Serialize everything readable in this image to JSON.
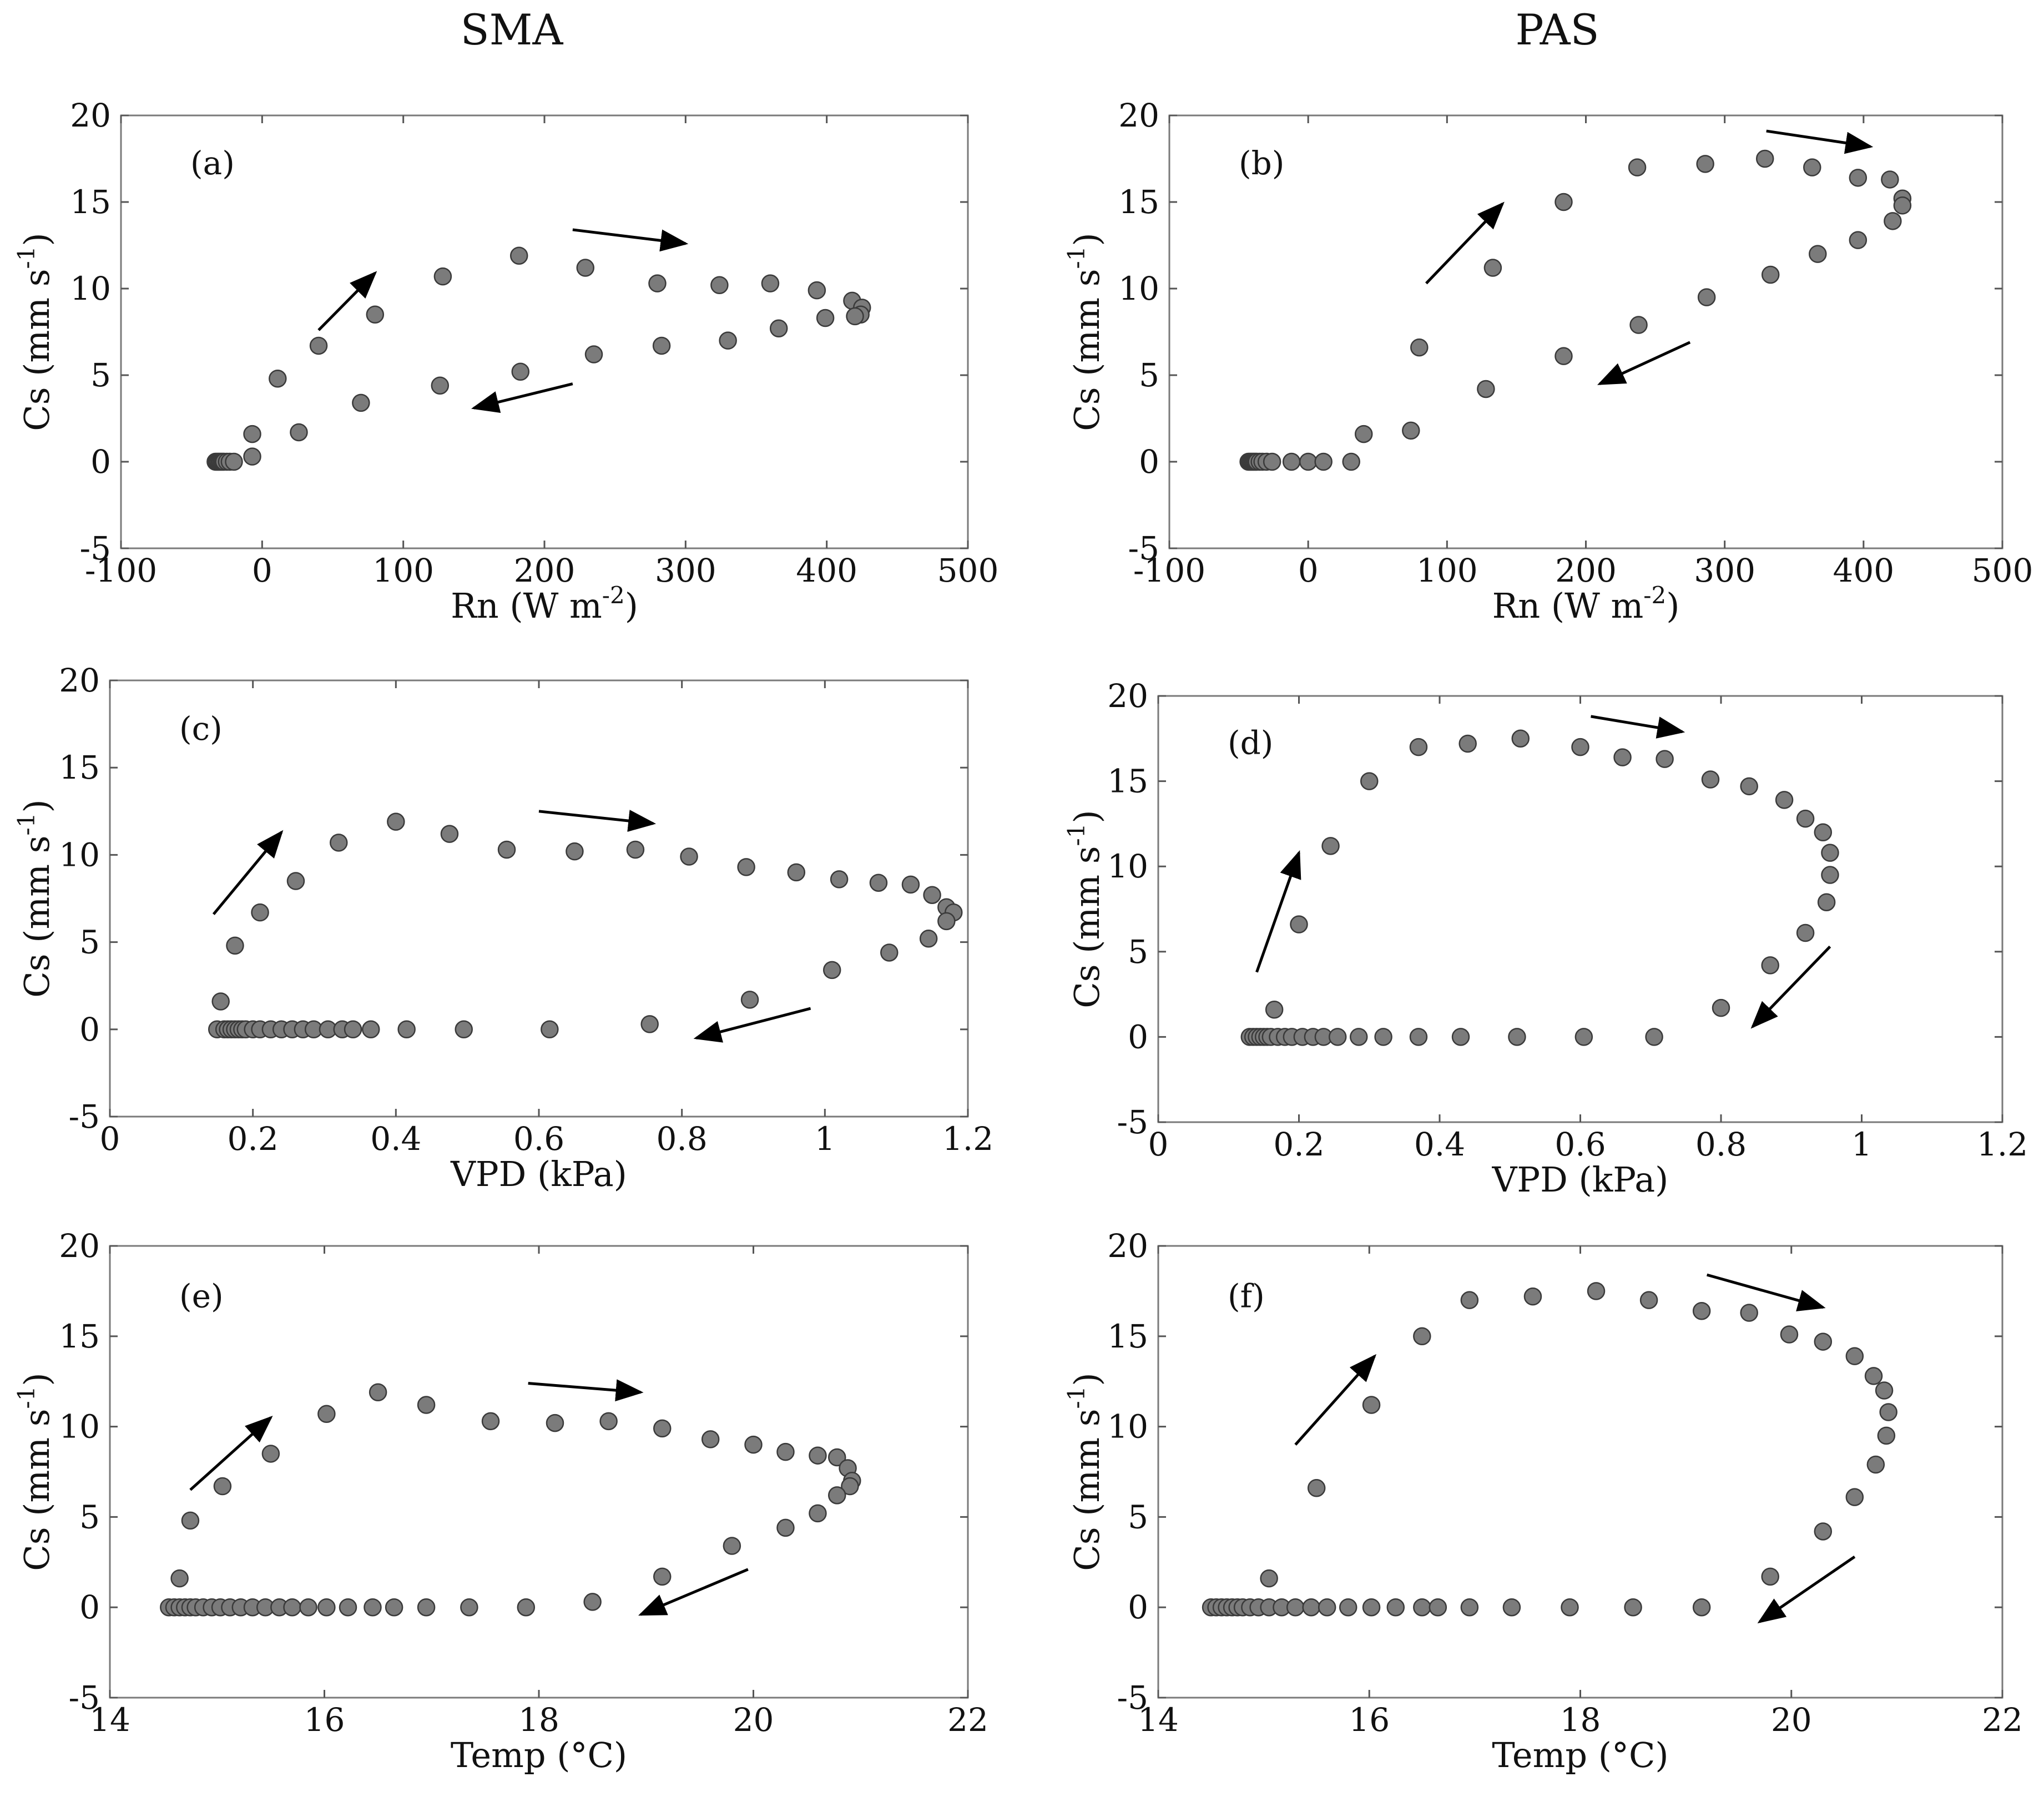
{
  "column_titles": [
    "SMA",
    "PAS"
  ],
  "chart_data": [
    {
      "type": "scatter",
      "label": "(a)",
      "column": "SMA",
      "xlabel": "Rn (W m",
      "xlabel_sup": "-2",
      "xlabel_end": ")",
      "ylabel": "Cs (mm s",
      "ylabel_sup": "-1",
      "ylabel_end": ")",
      "xlim": [
        -100,
        500
      ],
      "ylim": [
        -5,
        20
      ],
      "xticks": [
        -100,
        0,
        100,
        200,
        300,
        400,
        500
      ],
      "yticks": [
        -5,
        0,
        5,
        10,
        15,
        20
      ],
      "points": [
        [
          -33,
          0
        ],
        [
          -32,
          0
        ],
        [
          -31,
          0
        ],
        [
          -30,
          0
        ],
        [
          -29,
          0
        ],
        [
          -28,
          0
        ],
        [
          -27,
          0
        ],
        [
          -25,
          0
        ],
        [
          -23,
          0
        ],
        [
          -20,
          0
        ],
        [
          -7,
          0.3
        ],
        [
          -7,
          1.6
        ],
        [
          11,
          4.8
        ],
        [
          40,
          6.7
        ],
        [
          80,
          8.5
        ],
        [
          128,
          10.7
        ],
        [
          182,
          11.9
        ],
        [
          229,
          11.2
        ],
        [
          280,
          10.3
        ],
        [
          324,
          10.2
        ],
        [
          360,
          10.3
        ],
        [
          393,
          9.9
        ],
        [
          418,
          9.3
        ],
        [
          425,
          8.9
        ],
        [
          424,
          8.5
        ],
        [
          420,
          8.4
        ],
        [
          399,
          8.3
        ],
        [
          366,
          7.7
        ],
        [
          330,
          7.0
        ],
        [
          283,
          6.7
        ],
        [
          235,
          6.2
        ],
        [
          183,
          5.2
        ],
        [
          126,
          4.4
        ],
        [
          70,
          3.4
        ],
        [
          26,
          1.7
        ]
      ],
      "arrows": [
        [
          40,
          7.6,
          80,
          10.9
        ],
        [
          220,
          13.4,
          300,
          12.6
        ],
        [
          220,
          4.5,
          150,
          3.1
        ]
      ]
    },
    {
      "type": "scatter",
      "label": "(b)",
      "column": "PAS",
      "xlabel": "Rn (W m",
      "xlabel_sup": "-2",
      "xlabel_end": ")",
      "ylabel": "Cs (mm s",
      "ylabel_sup": "-1",
      "ylabel_end": ")",
      "xlim": [
        -100,
        500
      ],
      "ylim": [
        -5,
        20
      ],
      "xticks": [
        -100,
        0,
        100,
        200,
        300,
        400,
        500
      ],
      "yticks": [
        -5,
        0,
        5,
        10,
        15,
        20
      ],
      "points": [
        [
          -43,
          0
        ],
        [
          -42,
          0
        ],
        [
          -41,
          0
        ],
        [
          -40,
          0
        ],
        [
          -39,
          0
        ],
        [
          -38,
          0
        ],
        [
          -37,
          0
        ],
        [
          -35,
          0
        ],
        [
          -33,
          0
        ],
        [
          -30,
          0
        ],
        [
          -26,
          0
        ],
        [
          -12,
          0
        ],
        [
          0,
          0
        ],
        [
          11,
          0
        ],
        [
          31,
          0
        ],
        [
          40,
          1.6
        ],
        [
          74,
          1.8
        ],
        [
          80,
          6.6
        ],
        [
          128,
          4.2
        ],
        [
          133,
          11.2
        ],
        [
          184,
          15.0
        ],
        [
          184,
          6.1
        ],
        [
          237,
          17.0
        ],
        [
          238,
          7.9
        ],
        [
          286,
          17.2
        ],
        [
          287,
          9.5
        ],
        [
          329,
          17.5
        ],
        [
          333,
          10.8
        ],
        [
          363,
          17.0
        ],
        [
          367,
          12.0
        ],
        [
          396,
          16.4
        ],
        [
          396,
          12.8
        ],
        [
          419,
          16.3
        ],
        [
          421,
          13.9
        ],
        [
          428,
          15.2
        ],
        [
          428,
          14.8
        ]
      ],
      "arrows": [
        [
          85,
          10.3,
          140,
          14.9
        ],
        [
          330,
          19.1,
          405,
          18.2
        ],
        [
          275,
          6.9,
          210,
          4.5
        ]
      ]
    },
    {
      "type": "scatter",
      "label": "(c)",
      "column": "SMA",
      "xlabel": "VPD (kPa)",
      "xlabel_sup": "",
      "xlabel_end": "",
      "ylabel": "Cs (mm s",
      "ylabel_sup": "-1",
      "ylabel_end": ")",
      "xlim": [
        0,
        1.2
      ],
      "ylim": [
        -5,
        20
      ],
      "xticks": [
        0,
        0.2,
        0.4,
        0.6,
        0.8,
        1,
        1.2
      ],
      "yticks": [
        -5,
        0,
        5,
        10,
        15,
        20
      ],
      "points": [
        [
          0.15,
          0
        ],
        [
          0.16,
          0
        ],
        [
          0.165,
          0
        ],
        [
          0.17,
          0
        ],
        [
          0.175,
          0
        ],
        [
          0.18,
          0
        ],
        [
          0.185,
          0
        ],
        [
          0.19,
          0
        ],
        [
          0.2,
          0
        ],
        [
          0.21,
          0
        ],
        [
          0.225,
          0
        ],
        [
          0.24,
          0
        ],
        [
          0.255,
          0
        ],
        [
          0.27,
          0
        ],
        [
          0.285,
          0
        ],
        [
          0.305,
          0
        ],
        [
          0.325,
          0
        ],
        [
          0.34,
          0
        ],
        [
          0.365,
          0
        ],
        [
          0.415,
          0
        ],
        [
          0.495,
          0
        ],
        [
          0.615,
          0
        ],
        [
          0.755,
          0.3
        ],
        [
          0.155,
          1.6
        ],
        [
          0.175,
          4.8
        ],
        [
          0.21,
          6.7
        ],
        [
          0.26,
          8.5
        ],
        [
          0.32,
          10.7
        ],
        [
          0.4,
          11.9
        ],
        [
          0.475,
          11.2
        ],
        [
          0.555,
          10.3
        ],
        [
          0.65,
          10.2
        ],
        [
          0.735,
          10.3
        ],
        [
          0.81,
          9.9
        ],
        [
          0.89,
          9.3
        ],
        [
          0.96,
          9.0
        ],
        [
          1.02,
          8.6
        ],
        [
          1.075,
          8.4
        ],
        [
          1.12,
          8.3
        ],
        [
          1.15,
          7.7
        ],
        [
          1.17,
          7.0
        ],
        [
          1.18,
          6.7
        ],
        [
          1.17,
          6.2
        ],
        [
          1.145,
          5.2
        ],
        [
          1.09,
          4.4
        ],
        [
          1.01,
          3.4
        ],
        [
          0.895,
          1.7
        ]
      ],
      "arrows": [
        [
          0.145,
          6.6,
          0.24,
          11.3
        ],
        [
          0.6,
          12.5,
          0.76,
          11.8
        ],
        [
          0.98,
          1.2,
          0.82,
          -0.5
        ]
      ]
    },
    {
      "type": "scatter",
      "label": "(d)",
      "column": "PAS",
      "xlabel": "VPD (kPa)",
      "xlabel_sup": "",
      "xlabel_end": "",
      "ylabel": "Cs (mm s",
      "ylabel_sup": "-1",
      "ylabel_end": ")",
      "xlim": [
        0,
        1.2
      ],
      "ylim": [
        -5,
        20
      ],
      "xticks": [
        0,
        0.2,
        0.4,
        0.6,
        0.8,
        1,
        1.2
      ],
      "yticks": [
        -5,
        0,
        5,
        10,
        15,
        20
      ],
      "points": [
        [
          0.13,
          0
        ],
        [
          0.135,
          0
        ],
        [
          0.14,
          0
        ],
        [
          0.145,
          0
        ],
        [
          0.15,
          0
        ],
        [
          0.155,
          0
        ],
        [
          0.16,
          0
        ],
        [
          0.17,
          0
        ],
        [
          0.18,
          0
        ],
        [
          0.19,
          0
        ],
        [
          0.205,
          0
        ],
        [
          0.22,
          0
        ],
        [
          0.235,
          0
        ],
        [
          0.255,
          0
        ],
        [
          0.285,
          0
        ],
        [
          0.32,
          0
        ],
        [
          0.37,
          0
        ],
        [
          0.43,
          0
        ],
        [
          0.51,
          0
        ],
        [
          0.605,
          0
        ],
        [
          0.705,
          0
        ],
        [
          0.165,
          1.6
        ],
        [
          0.2,
          6.6
        ],
        [
          0.245,
          11.2
        ],
        [
          0.3,
          15.0
        ],
        [
          0.37,
          17.0
        ],
        [
          0.44,
          17.2
        ],
        [
          0.515,
          17.5
        ],
        [
          0.6,
          17.0
        ],
        [
          0.66,
          16.4
        ],
        [
          0.72,
          16.3
        ],
        [
          0.785,
          15.1
        ],
        [
          0.84,
          14.7
        ],
        [
          0.89,
          13.9
        ],
        [
          0.92,
          12.8
        ],
        [
          0.945,
          12.0
        ],
        [
          0.955,
          10.8
        ],
        [
          0.955,
          9.5
        ],
        [
          0.95,
          7.9
        ],
        [
          0.92,
          6.1
        ],
        [
          0.87,
          4.2
        ],
        [
          0.8,
          1.7
        ]
      ],
      "arrows": [
        [
          0.14,
          3.8,
          0.2,
          10.8
        ],
        [
          0.615,
          18.8,
          0.745,
          17.9
        ],
        [
          0.955,
          5.3,
          0.845,
          0.6
        ]
      ]
    },
    {
      "type": "scatter",
      "label": "(e)",
      "column": "SMA",
      "xlabel": "Temp (°C)",
      "xlabel_sup": "",
      "xlabel_end": "",
      "ylabel": "Cs (mm s",
      "ylabel_sup": "-1",
      "ylabel_end": ")",
      "xlim": [
        14,
        22
      ],
      "ylim": [
        -5,
        20
      ],
      "xticks": [
        14,
        16,
        18,
        20,
        22
      ],
      "yticks": [
        -5,
        0,
        5,
        10,
        15,
        20
      ],
      "points": [
        [
          14.55,
          0
        ],
        [
          14.6,
          0
        ],
        [
          14.65,
          0
        ],
        [
          14.7,
          0
        ],
        [
          14.75,
          0
        ],
        [
          14.8,
          0
        ],
        [
          14.87,
          0
        ],
        [
          14.95,
          0
        ],
        [
          15.03,
          0
        ],
        [
          15.12,
          0
        ],
        [
          15.22,
          0
        ],
        [
          15.33,
          0
        ],
        [
          15.45,
          0
        ],
        [
          15.58,
          0
        ],
        [
          15.7,
          0
        ],
        [
          15.85,
          0
        ],
        [
          16.02,
          0
        ],
        [
          16.22,
          0
        ],
        [
          16.45,
          0
        ],
        [
          16.65,
          0
        ],
        [
          16.95,
          0
        ],
        [
          17.35,
          0
        ],
        [
          17.88,
          0
        ],
        [
          18.5,
          0.3
        ],
        [
          14.65,
          1.6
        ],
        [
          14.75,
          4.8
        ],
        [
          15.05,
          6.7
        ],
        [
          15.5,
          8.5
        ],
        [
          16.02,
          10.7
        ],
        [
          16.5,
          11.9
        ],
        [
          16.95,
          11.2
        ],
        [
          17.55,
          10.3
        ],
        [
          18.15,
          10.2
        ],
        [
          18.65,
          10.3
        ],
        [
          19.15,
          9.9
        ],
        [
          19.6,
          9.3
        ],
        [
          20.0,
          9.0
        ],
        [
          20.3,
          8.6
        ],
        [
          20.6,
          8.4
        ],
        [
          20.78,
          8.3
        ],
        [
          20.88,
          7.7
        ],
        [
          20.92,
          7.0
        ],
        [
          20.9,
          6.7
        ],
        [
          20.78,
          6.2
        ],
        [
          20.6,
          5.2
        ],
        [
          20.3,
          4.4
        ],
        [
          19.8,
          3.4
        ],
        [
          19.15,
          1.7
        ]
      ],
      "arrows": [
        [
          14.75,
          6.5,
          15.5,
          10.5
        ],
        [
          17.9,
          12.4,
          18.95,
          11.9
        ],
        [
          19.95,
          2.1,
          18.95,
          -0.4
        ]
      ]
    },
    {
      "type": "scatter",
      "label": "(f)",
      "column": "PAS",
      "xlabel": "Temp (°C)",
      "xlabel_sup": "",
      "xlabel_end": "",
      "ylabel": "Cs (mm s",
      "ylabel_sup": "-1",
      "ylabel_end": ")",
      "xlim": [
        14,
        22
      ],
      "ylim": [
        -5,
        20
      ],
      "xticks": [
        14,
        16,
        18,
        20,
        22
      ],
      "yticks": [
        -5,
        0,
        5,
        10,
        15,
        20
      ],
      "points": [
        [
          14.5,
          0
        ],
        [
          14.55,
          0
        ],
        [
          14.6,
          0
        ],
        [
          14.65,
          0
        ],
        [
          14.7,
          0
        ],
        [
          14.75,
          0
        ],
        [
          14.8,
          0
        ],
        [
          14.87,
          0
        ],
        [
          14.95,
          0
        ],
        [
          15.05,
          0
        ],
        [
          15.17,
          0
        ],
        [
          15.3,
          0
        ],
        [
          15.45,
          0
        ],
        [
          15.6,
          0
        ],
        [
          15.8,
          0
        ],
        [
          16.02,
          0
        ],
        [
          16.25,
          0
        ],
        [
          16.5,
          0
        ],
        [
          16.65,
          0
        ],
        [
          16.95,
          0
        ],
        [
          17.35,
          0
        ],
        [
          17.9,
          0
        ],
        [
          18.5,
          0
        ],
        [
          19.15,
          0
        ],
        [
          15.05,
          1.6
        ],
        [
          15.5,
          6.6
        ],
        [
          16.02,
          11.2
        ],
        [
          16.5,
          15.0
        ],
        [
          16.95,
          17.0
        ],
        [
          17.55,
          17.2
        ],
        [
          18.15,
          17.5
        ],
        [
          18.65,
          17.0
        ],
        [
          19.15,
          16.4
        ],
        [
          19.6,
          16.3
        ],
        [
          19.98,
          15.1
        ],
        [
          20.3,
          14.7
        ],
        [
          20.6,
          13.9
        ],
        [
          20.78,
          12.8
        ],
        [
          20.88,
          12.0
        ],
        [
          20.92,
          10.8
        ],
        [
          20.9,
          9.5
        ],
        [
          20.8,
          7.9
        ],
        [
          20.6,
          6.1
        ],
        [
          20.3,
          4.2
        ],
        [
          19.8,
          1.7
        ]
      ],
      "arrows": [
        [
          15.3,
          9.0,
          16.05,
          13.9
        ],
        [
          19.2,
          18.4,
          20.3,
          16.6
        ],
        [
          20.6,
          2.8,
          19.7,
          -0.8
        ]
      ]
    }
  ]
}
